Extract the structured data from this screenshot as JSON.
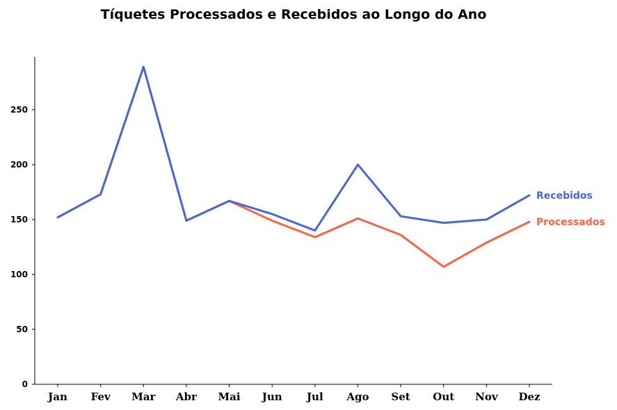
{
  "chart_data": {
    "type": "line",
    "title": "Tíquetes Processados e Recebidos ao Longo do Ano",
    "xlabel": "",
    "ylabel": "",
    "categories": [
      "Jan",
      "Fev",
      "Mar",
      "Abr",
      "Mai",
      "Jun",
      "Jul",
      "Ago",
      "Set",
      "Out",
      "Nov",
      "Dez"
    ],
    "ylim": [
      0,
      298
    ],
    "yticks": [
      0,
      50,
      100,
      150,
      200,
      250
    ],
    "grid": false,
    "legend": "direct-labels-right",
    "series": [
      {
        "name": "Processados",
        "color": "#fa6446",
        "values": [
          152,
          173,
          289,
          149,
          167,
          149,
          134,
          151,
          136,
          107,
          129,
          148
        ]
      },
      {
        "name": "Recebidos",
        "color": "#4866d6",
        "values": [
          152,
          173,
          289,
          149,
          167,
          155,
          140,
          200,
          153,
          147,
          150,
          172
        ]
      }
    ]
  }
}
